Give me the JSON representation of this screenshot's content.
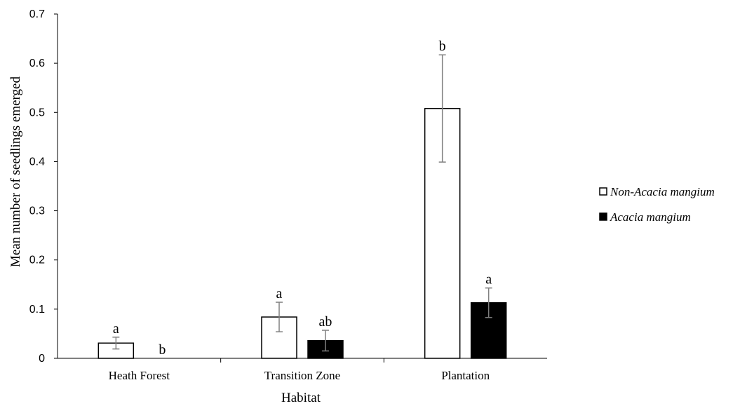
{
  "chart_data": {
    "type": "bar",
    "title": "",
    "xlabel": "Habitat",
    "ylabel": "Mean number of seedlings emerged",
    "ylim": [
      0,
      0.7
    ],
    "yticks": [
      "0",
      "0.1",
      "0.2",
      "0.3",
      "0.4",
      "0.5",
      "0.6",
      "0.7"
    ],
    "grid": false,
    "legend_position": "right",
    "categories": [
      "Heath Forest",
      "Transition Zone",
      "Plantation"
    ],
    "series": [
      {
        "name": "Non-Acacia mangium",
        "fill": "#ffffff",
        "stroke": "#000000",
        "values": [
          0.031,
          0.084,
          0.508
        ],
        "errors": [
          0.012,
          0.03,
          0.109
        ],
        "labels": [
          "a",
          "a",
          "b"
        ]
      },
      {
        "name": "Acacia mangium",
        "fill": "#000000",
        "stroke": "#000000",
        "values": [
          0,
          0.036,
          0.113
        ],
        "errors": [
          0,
          0.021,
          0.03
        ],
        "labels": [
          "b",
          "ab",
          "a"
        ]
      }
    ],
    "error_bar_color": "#808080"
  }
}
